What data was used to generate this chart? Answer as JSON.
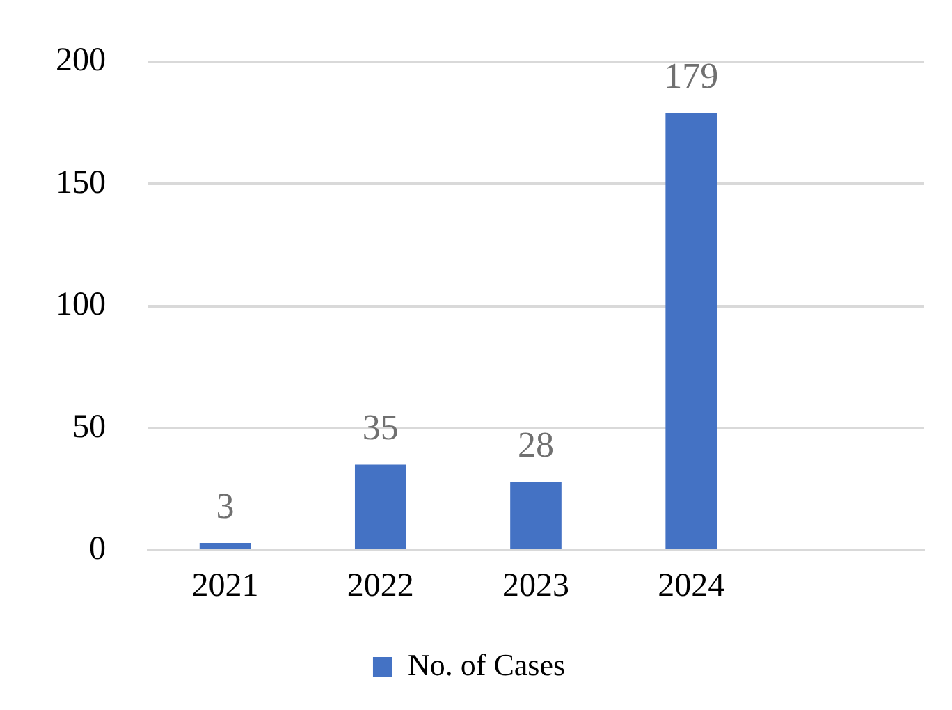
{
  "chart_data": {
    "type": "bar",
    "categories": [
      "2021",
      "2022",
      "2023",
      "2024",
      null
    ],
    "series": [
      {
        "name": "No. of Cases",
        "color": "#4472c4",
        "values": [
          3,
          35,
          28,
          179,
          null
        ]
      }
    ],
    "ylim": [
      0,
      200
    ],
    "yticks": [
      0,
      50,
      100,
      150,
      200
    ],
    "grid": "y",
    "legend": "bottom",
    "data_labels": true
  }
}
